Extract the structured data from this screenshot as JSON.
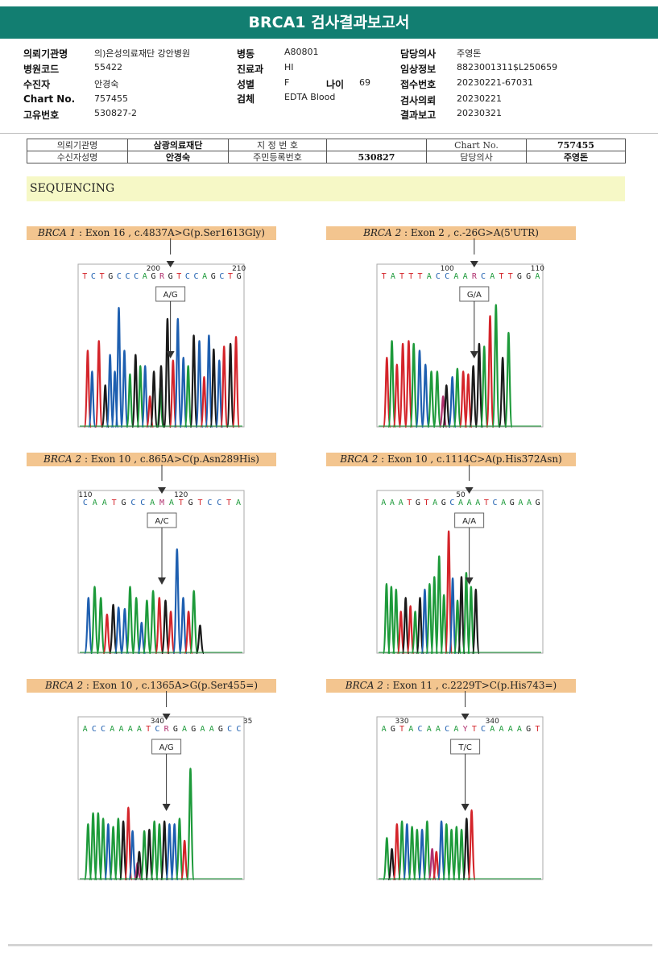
{
  "report": {
    "title": "BRCA1 검사결과보고서"
  },
  "info": {
    "hospital_label": "의뢰기관명",
    "hospital_value": "의)은성의료재단 강안병원",
    "hospcode_label": "병원코드",
    "hospcode_value": "55422",
    "patient_label": "수진자",
    "patient_value": "안경숙",
    "chart_label": "Chart No.",
    "chart_value": "757455",
    "uid_label": "고유번호",
    "uid_value": "530827-2",
    "ward_label": "병동",
    "ward_value": "A80801",
    "dept_label": "진료과",
    "dept_value": "HI",
    "sex_label": "성별",
    "sex_value": "F",
    "age_label": "나이",
    "age_value": "69",
    "specimen_label": "검체",
    "specimen_value": "EDTA Blood",
    "doctor_label": "담당의사",
    "doctor_value": "주영돈",
    "clinical_label": "임상정보",
    "clinical_value": "8823001311$L250659",
    "receipt_label": "접수번호",
    "receipt_value": "20230221-67031",
    "request_label": "검사의뢰",
    "request_value": "20230221",
    "result_label": "결과보고",
    "result_value": "20230321"
  },
  "request_table": {
    "r1": [
      "의뢰기관명",
      "삼광의료재단",
      "지 정 번 호",
      "",
      "Chart No.",
      "757455"
    ],
    "r2": [
      "수신자성명",
      "안경숙",
      "주민등록번호",
      "530827",
      "담당의사",
      "주영돈"
    ]
  },
  "sequencing": {
    "title": "SEQUENCING",
    "panels": [
      {
        "gene": "BRCA 1",
        "variant": " : Exon 16 , c.4837A>G(p.Ser1613Gly)",
        "call": "A/G",
        "bases": "TCTGCCCAGRGTCCAGCTG",
        "variant_index": 10,
        "tick1_label": "200",
        "tick1_index": 8,
        "tick2_label": "210",
        "tick2_index": 18,
        "peaks": [
          [
            0.3,
            0.55,
            "T"
          ],
          [
            0.85,
            0.4,
            "C"
          ],
          [
            1.7,
            0.62,
            "T"
          ],
          [
            2.5,
            0.3,
            "G"
          ],
          [
            3.1,
            0.52,
            "C"
          ],
          [
            3.7,
            0.4,
            "C"
          ],
          [
            4.2,
            0.86,
            "C"
          ],
          [
            4.9,
            0.55,
            "C"
          ],
          [
            5.6,
            0.38,
            "A"
          ],
          [
            6.3,
            0.52,
            "G"
          ],
          [
            6.9,
            0.44,
            "A"
          ],
          [
            7.5,
            0.44,
            "C"
          ],
          [
            8.1,
            0.22,
            "T"
          ],
          [
            8.6,
            0.4,
            "G"
          ],
          [
            9.4,
            0.28,
            "A"
          ],
          [
            9.5,
            0.44,
            "G"
          ],
          [
            10.3,
            0.78,
            "G"
          ],
          [
            11.0,
            0.48,
            "T"
          ],
          [
            11.6,
            0.78,
            "C"
          ],
          [
            12.3,
            0.5,
            "C"
          ],
          [
            12.9,
            0.44,
            "A"
          ],
          [
            13.6,
            0.66,
            "G"
          ],
          [
            14.3,
            0.62,
            "C"
          ],
          [
            14.9,
            0.36,
            "T"
          ],
          [
            15.5,
            0.66,
            "C"
          ],
          [
            16.1,
            0.56,
            "G"
          ],
          [
            16.8,
            0.48,
            "C"
          ],
          [
            17.4,
            0.58,
            "T"
          ],
          [
            18.2,
            0.6,
            "G"
          ],
          [
            18.9,
            0.65,
            "T"
          ]
        ]
      },
      {
        "gene": "BRCA 2",
        "variant": " : Exon 2 , c.-26G>A(5'UTR)",
        "call": "G/A",
        "bases": "TATTTACCAARCATTGGA",
        "variant_index": 10,
        "tick1_label": "100",
        "tick1_index": 7,
        "tick2_label": "110",
        "tick2_index": 17,
        "peaks": [
          [
            0.3,
            0.5,
            "T"
          ],
          [
            0.9,
            0.62,
            "A"
          ],
          [
            1.5,
            0.45,
            "T"
          ],
          [
            2.2,
            0.6,
            "T"
          ],
          [
            2.9,
            0.62,
            "T"
          ],
          [
            3.5,
            0.6,
            "A"
          ],
          [
            4.2,
            0.55,
            "C"
          ],
          [
            4.9,
            0.45,
            "C"
          ],
          [
            5.6,
            0.4,
            "A"
          ],
          [
            6.3,
            0.4,
            "A"
          ],
          [
            7.0,
            0.22,
            "R"
          ],
          [
            7.4,
            0.3,
            "G"
          ],
          [
            8.1,
            0.36,
            "C"
          ],
          [
            8.7,
            0.42,
            "A"
          ],
          [
            9.4,
            0.4,
            "T"
          ],
          [
            10.0,
            0.38,
            "T"
          ],
          [
            10.6,
            0.44,
            "G"
          ],
          [
            11.3,
            0.6,
            "G"
          ],
          [
            11.9,
            0.58,
            "A"
          ],
          [
            12.6,
            0.8,
            "T"
          ],
          [
            13.3,
            0.88,
            "A"
          ],
          [
            14.1,
            0.5,
            "G"
          ],
          [
            14.8,
            0.68,
            "A"
          ]
        ]
      },
      {
        "gene": "BRCA 2",
        "variant": " : Exon 10 , c.865A>C(p.Asn289His)",
        "call": "A/C",
        "bases": "CAATGCCAMATGTCCTA",
        "variant_index": 8,
        "tick1_label": "110",
        "tick1_index": 0,
        "tick2_label": "120",
        "tick2_index": 10,
        "peaks": [
          [
            0.3,
            0.4,
            "C"
          ],
          [
            1.0,
            0.48,
            "A"
          ],
          [
            1.7,
            0.4,
            "A"
          ],
          [
            2.4,
            0.28,
            "T"
          ],
          [
            3.1,
            0.35,
            "G"
          ],
          [
            3.7,
            0.33,
            "C"
          ],
          [
            4.4,
            0.32,
            "C"
          ],
          [
            5.0,
            0.48,
            "A"
          ],
          [
            5.7,
            0.4,
            "A"
          ],
          [
            6.3,
            0.22,
            "C"
          ],
          [
            6.9,
            0.38,
            "A"
          ],
          [
            7.6,
            0.45,
            "A"
          ],
          [
            8.3,
            0.4,
            "T"
          ],
          [
            9.0,
            0.38,
            "G"
          ],
          [
            9.6,
            0.3,
            "T"
          ],
          [
            10.3,
            0.75,
            "C"
          ],
          [
            11.0,
            0.4,
            "C"
          ],
          [
            11.6,
            0.3,
            "T"
          ],
          [
            12.2,
            0.45,
            "A"
          ],
          [
            12.9,
            0.2,
            "G"
          ]
        ]
      },
      {
        "gene": "BRCA 2",
        "variant": " : Exon 10 , c.1114C>A(p.His372Asn)",
        "call": "A/A",
        "bases": "AAATGTAGCAAATCAGAAG",
        "variant_index": 10,
        "tick1_label": "50",
        "tick1_index": 9,
        "tick2_label": "",
        "tick2_index": -1,
        "peaks": [
          [
            0.3,
            0.5,
            "A"
          ],
          [
            0.9,
            0.48,
            "A"
          ],
          [
            1.5,
            0.46,
            "A"
          ],
          [
            2.1,
            0.3,
            "T"
          ],
          [
            2.7,
            0.4,
            "G"
          ],
          [
            3.3,
            0.34,
            "T"
          ],
          [
            3.9,
            0.3,
            "A"
          ],
          [
            4.5,
            0.4,
            "G"
          ],
          [
            5.1,
            0.46,
            "C"
          ],
          [
            5.7,
            0.5,
            "A"
          ],
          [
            6.3,
            0.55,
            "A"
          ],
          [
            6.9,
            0.7,
            "A"
          ],
          [
            7.5,
            0.42,
            "A"
          ],
          [
            8.1,
            0.88,
            "T"
          ],
          [
            8.6,
            0.54,
            "C"
          ],
          [
            9.2,
            0.38,
            "A"
          ],
          [
            9.7,
            0.55,
            "G"
          ],
          [
            10.3,
            0.58,
            "A"
          ],
          [
            10.9,
            0.48,
            "A"
          ],
          [
            11.5,
            0.46,
            "G"
          ]
        ]
      },
      {
        "gene": "BRCA 2",
        "variant": " : Exon 10 , c.1365A>G(p.Ser455=)",
        "call": "A/G",
        "bases": "ACCAAAATCRGAGAAGCC",
        "variant_index": 9,
        "tick1_label": "340",
        "tick1_index": 8,
        "tick2_label": "35",
        "tick2_index": 18,
        "peaks": [
          [
            0.3,
            0.4,
            "A"
          ],
          [
            0.9,
            0.48,
            "A"
          ],
          [
            1.5,
            0.48,
            "A"
          ],
          [
            2.1,
            0.44,
            "A"
          ],
          [
            2.7,
            0.4,
            "C"
          ],
          [
            3.3,
            0.38,
            "A"
          ],
          [
            3.9,
            0.44,
            "A"
          ],
          [
            4.5,
            0.42,
            "G"
          ],
          [
            5.1,
            0.52,
            "T"
          ],
          [
            5.6,
            0.35,
            "C"
          ],
          [
            6.2,
            0.12,
            "R"
          ],
          [
            6.4,
            0.2,
            "G"
          ],
          [
            7.0,
            0.35,
            "A"
          ],
          [
            7.6,
            0.36,
            "G"
          ],
          [
            8.2,
            0.42,
            "A"
          ],
          [
            8.8,
            0.4,
            "A"
          ],
          [
            9.4,
            0.42,
            "G"
          ],
          [
            10.0,
            0.4,
            "C"
          ],
          [
            10.6,
            0.4,
            "C"
          ],
          [
            11.2,
            0.44,
            "A"
          ],
          [
            11.8,
            0.28,
            "T"
          ],
          [
            12.5,
            0.8,
            "A"
          ]
        ]
      },
      {
        "gene": "BRCA 2",
        "variant": " : Exon 11 , c.2229T>C(p.His743=)",
        "call": "T/C",
        "bases": "AGTACAACAYTCAAAAGT",
        "variant_index": 9,
        "tick1_label": "330",
        "tick1_index": 2,
        "tick2_label": "340",
        "tick2_index": 12,
        "peaks": [
          [
            0.3,
            0.3,
            "A"
          ],
          [
            0.9,
            0.22,
            "G"
          ],
          [
            1.5,
            0.4,
            "T"
          ],
          [
            2.1,
            0.42,
            "A"
          ],
          [
            2.7,
            0.4,
            "C"
          ],
          [
            3.3,
            0.38,
            "A"
          ],
          [
            3.9,
            0.36,
            "A"
          ],
          [
            4.5,
            0.36,
            "C"
          ],
          [
            5.1,
            0.42,
            "A"
          ],
          [
            5.7,
            0.22,
            "Y"
          ],
          [
            6.2,
            0.2,
            "T"
          ],
          [
            6.8,
            0.42,
            "C"
          ],
          [
            7.4,
            0.4,
            "A"
          ],
          [
            8.0,
            0.36,
            "A"
          ],
          [
            8.6,
            0.38,
            "A"
          ],
          [
            9.2,
            0.36,
            "A"
          ],
          [
            9.8,
            0.44,
            "G"
          ],
          [
            10.4,
            0.5,
            "T"
          ]
        ]
      }
    ]
  },
  "colors": {
    "A": "#1d9a3a",
    "C": "#1e5fb0",
    "G": "#1a1a1a",
    "T": "#d4242a",
    "header": "#127e71",
    "label_bg": "#f3c58f",
    "banner": "#f6f8c6"
  }
}
